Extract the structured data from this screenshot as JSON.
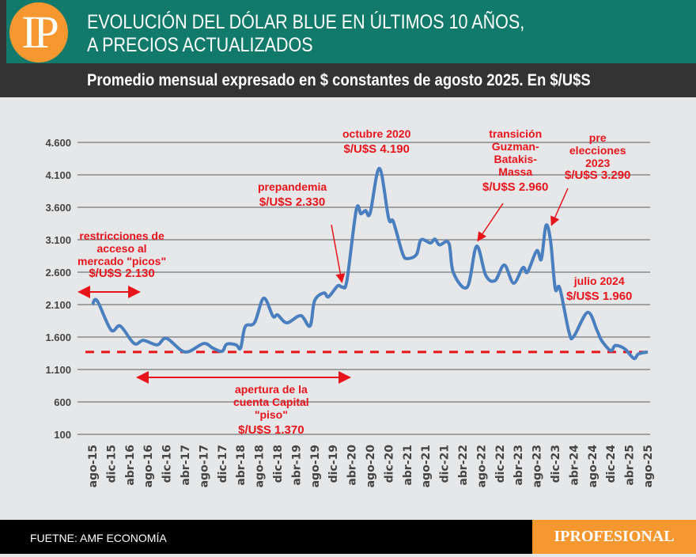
{
  "header": {
    "logo": "IP",
    "title_line1": "EVOLUCIÓN DEL DÓLAR BLUE EN ÚLTIMOS 10 AÑOS,",
    "title_line2": "A PRECIOS ACTUALIZADOS",
    "subtitle": "Promedio mensual expresado en $ constantes de agosto 2025. En $/U$S"
  },
  "footer": {
    "source": "FUETNE: AMF ECONOMÍA",
    "brand": "IPROFESIONAL"
  },
  "annotations": {
    "restricciones": [
      "restricciones de",
      "acceso al",
      "mercado \"picos\"",
      "$/U$S 2.130"
    ],
    "apertura": [
      "apertura de la",
      "cuenta Capital",
      "\"piso\"",
      "$/U$S 1.370"
    ],
    "prepandemia": [
      "prepandemia",
      "$/U$S 2.330"
    ],
    "octubre": [
      "octubre 2020",
      "$/U$S 4.190"
    ],
    "transicion": [
      "transición",
      "Guzman-",
      "Batakis-",
      "Massa",
      "$/U$S 2.960"
    ],
    "pre": [
      "pre",
      "elecciones",
      "2023",
      "$/U$S 3.290"
    ],
    "julio": [
      "julio 2024",
      "$/U$S 1.960"
    ]
  },
  "chart_data": {
    "type": "line",
    "title": "EVOLUCIÓN DEL DÓLAR BLUE EN ÚLTIMOS 10 AÑOS, A PRECIOS ACTUALIZADOS",
    "subtitle": "Promedio mensual expresado en $ constantes de agosto 2025. En $/U$S",
    "ylim": [
      100,
      4600
    ],
    "yticks": [
      "4.600",
      "4.100",
      "3.600",
      "3.100",
      "2.600",
      "2.100",
      "1.600",
      "1.100",
      "600",
      "100"
    ],
    "xticks": [
      "ago-15",
      "dic-15",
      "abr-16",
      "ago-16",
      "dic-16",
      "abr-17",
      "ago-17",
      "dic-17",
      "abr-18",
      "ago-18",
      "dic-18",
      "abr-19",
      "ago-19",
      "dic-19",
      "abr-20",
      "ago-20",
      "dic-20",
      "abr-21",
      "ago-21",
      "dic-21",
      "abr-22",
      "ago-22",
      "dic-22",
      "abr-23",
      "ago-23",
      "dic-23",
      "abr-24",
      "ago-24",
      "dic-24",
      "abr-25",
      "ago-25"
    ],
    "grid": true,
    "line_color": "#4a7fbf",
    "floor_line": {
      "value": 1370,
      "color": "#e8141c",
      "style": "dashed"
    },
    "series": [
      {
        "points": [
          [
            "2015-08",
            2100
          ],
          [
            "2015-09",
            2160
          ],
          [
            "2015-12",
            1710
          ],
          [
            "2016-02",
            1770
          ],
          [
            "2016-05",
            1500
          ],
          [
            "2016-07",
            1550
          ],
          [
            "2016-10",
            1480
          ],
          [
            "2016-12",
            1580
          ],
          [
            "2017-04",
            1370
          ],
          [
            "2017-08",
            1500
          ],
          [
            "2017-10",
            1430
          ],
          [
            "2017-12",
            1380
          ],
          [
            "2018-01",
            1490
          ],
          [
            "2018-03",
            1480
          ],
          [
            "2018-04",
            1430
          ],
          [
            "2018-05",
            1760
          ],
          [
            "2018-07",
            1820
          ],
          [
            "2018-09",
            2200
          ],
          [
            "2018-11",
            1920
          ],
          [
            "2018-12",
            1940
          ],
          [
            "2019-02",
            1820
          ],
          [
            "2019-05",
            1930
          ],
          [
            "2019-07",
            1770
          ],
          [
            "2019-08",
            2160
          ],
          [
            "2019-10",
            2280
          ],
          [
            "2019-11",
            2220
          ],
          [
            "2020-01",
            2390
          ],
          [
            "2020-02",
            2370
          ],
          [
            "2020-03",
            2480
          ],
          [
            "2020-05",
            3560
          ],
          [
            "2020-06",
            3500
          ],
          [
            "2020-07",
            3550
          ],
          [
            "2020-08",
            3510
          ],
          [
            "2020-10",
            4200
          ],
          [
            "2020-12",
            3430
          ],
          [
            "2021-01",
            3380
          ],
          [
            "2021-03",
            2890
          ],
          [
            "2021-04",
            2810
          ],
          [
            "2021-06",
            2870
          ],
          [
            "2021-07",
            3100
          ],
          [
            "2021-09",
            3050
          ],
          [
            "2021-10",
            3110
          ],
          [
            "2021-11",
            3020
          ],
          [
            "2022-01",
            3050
          ],
          [
            "2022-02",
            2590
          ],
          [
            "2022-05",
            2370
          ],
          [
            "2022-07",
            3000
          ],
          [
            "2022-09",
            2550
          ],
          [
            "2022-11",
            2470
          ],
          [
            "2023-01",
            2710
          ],
          [
            "2023-03",
            2430
          ],
          [
            "2023-05",
            2670
          ],
          [
            "2023-06",
            2600
          ],
          [
            "2023-08",
            2930
          ],
          [
            "2023-09",
            2800
          ],
          [
            "2023-10",
            3320
          ],
          [
            "2023-11",
            3080
          ],
          [
            "2023-12",
            2350
          ],
          [
            "2024-01",
            2350
          ],
          [
            "2024-03",
            1670
          ],
          [
            "2024-04",
            1610
          ],
          [
            "2024-07",
            1980
          ],
          [
            "2024-09",
            1710
          ],
          [
            "2024-10",
            1550
          ],
          [
            "2024-12",
            1390
          ],
          [
            "2025-01",
            1470
          ],
          [
            "2025-03",
            1420
          ],
          [
            "2025-05",
            1270
          ],
          [
            "2025-06",
            1340
          ],
          [
            "2025-08",
            1370
          ]
        ]
      }
    ]
  }
}
